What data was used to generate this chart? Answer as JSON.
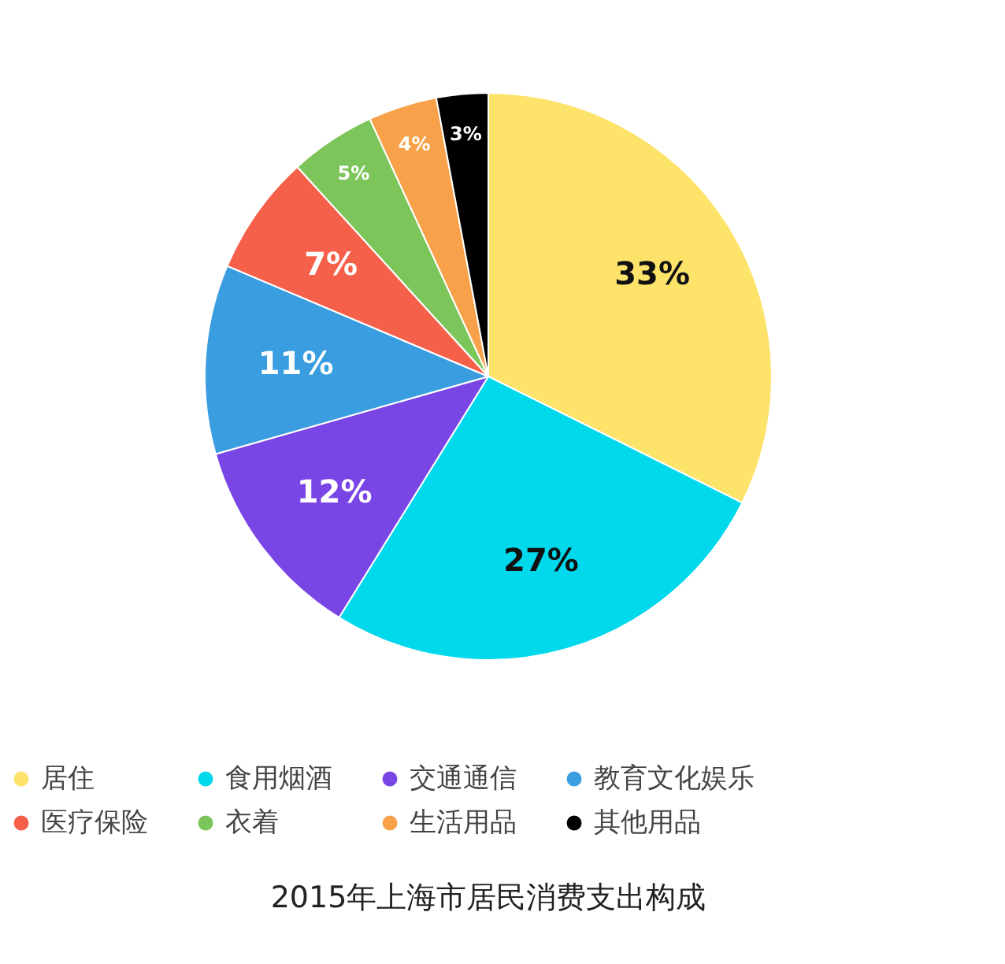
{
  "chart_data": {
    "type": "pie",
    "title": "2015年上海市居民消费支出构成",
    "categories": [
      "居住",
      "食用烟酒",
      "交通通信",
      "教育文化娱乐",
      "医疗保险",
      "衣着",
      "生活用品",
      "其他用品"
    ],
    "values": [
      33,
      27,
      12,
      11,
      7,
      5,
      4,
      3
    ],
    "value_labels": [
      "33%",
      "27%",
      "12%",
      "11%",
      "7%",
      "5%",
      "4%",
      "3%"
    ],
    "colors": [
      "#fde36a",
      "#00d8ec",
      "#7a45e5",
      "#3a9de0",
      "#f5604a",
      "#7cc55a",
      "#f7a24a",
      "#000000"
    ],
    "legend": "bottom"
  }
}
